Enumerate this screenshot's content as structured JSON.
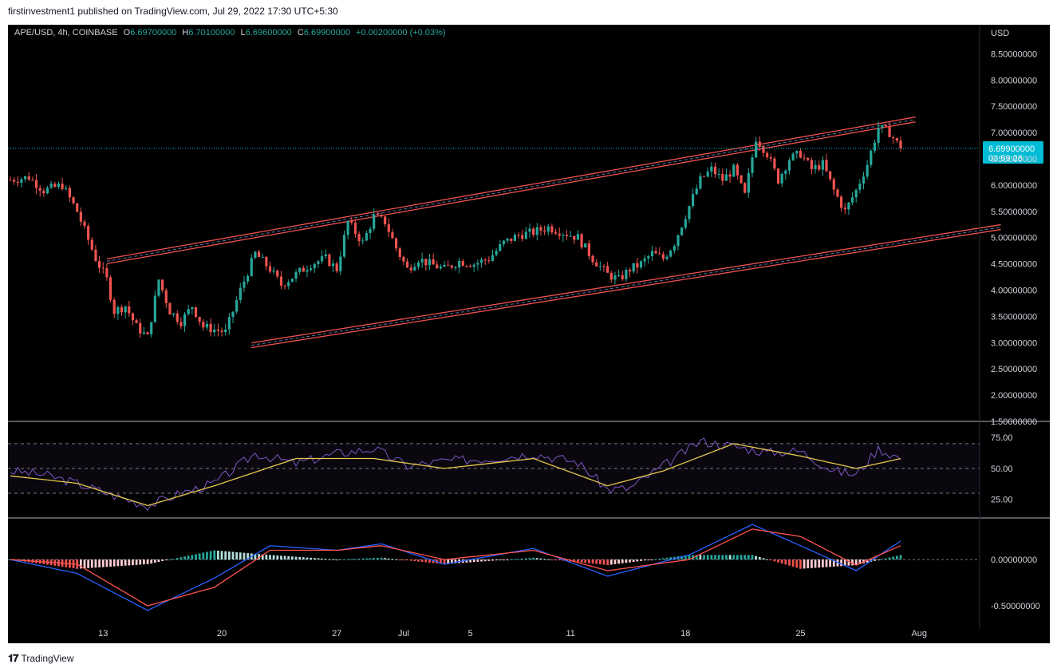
{
  "header": {
    "published_text": "firstinvestment1 published on TradingView.com, Jul 29, 2022 17:30 UTC+5:30"
  },
  "legend": {
    "symbol": "APE/USD, 4h, COINBASE",
    "o_label": "O",
    "o_value": "6.69700000",
    "h_label": "H",
    "h_value": "6.70100000",
    "l_label": "L",
    "l_value": "6.69600000",
    "c_label": "C",
    "c_value": "6.69900000",
    "change": "+0.00200000 (+0.03%)"
  },
  "price_axis": {
    "currency": "USD"
  },
  "price_tag": {
    "price": "6.69900000",
    "countdown": "03:59:26"
  },
  "footer": {
    "brand": "TradingView"
  },
  "colors": {
    "up": "#26a69a",
    "down": "#ef5350",
    "channel": "#ef5350",
    "rsi": "#7e57c2",
    "rsi_ma": "#e6c84b",
    "macd": "#2962ff",
    "signal": "#ff5252",
    "current_price": "#00bcd4"
  },
  "chart_data": [
    {
      "type": "candlestick",
      "symbol": "APE/USD",
      "timeframe": "4h",
      "exchange": "COINBASE",
      "x_ticks": [
        "13",
        "20",
        "27",
        "Jul",
        "5",
        "11",
        "18",
        "25",
        "Aug"
      ],
      "y_ticks": [
        "8.50000000",
        "8.00000000",
        "7.50000000",
        "7.00000000",
        "6.50000000",
        "6.00000000",
        "5.50000000",
        "5.00000000",
        "4.50000000",
        "4.00000000",
        "3.50000000",
        "3.00000000",
        "2.50000000",
        "2.00000000",
        "1.50000000"
      ],
      "ylim": [
        1.5,
        8.75
      ],
      "path": [
        [
          0,
          6.1
        ],
        [
          5,
          6.15
        ],
        [
          9,
          5.9
        ],
        [
          14,
          6.0
        ],
        [
          18,
          5.5
        ],
        [
          23,
          4.6
        ],
        [
          26,
          4.2
        ],
        [
          28,
          3.6
        ],
        [
          31,
          3.7
        ],
        [
          34,
          3.3
        ],
        [
          37,
          3.1
        ],
        [
          40,
          4.2
        ],
        [
          43,
          3.6
        ],
        [
          46,
          3.4
        ],
        [
          49,
          3.7
        ],
        [
          52,
          3.3
        ],
        [
          55,
          3.25
        ],
        [
          58,
          3.2
        ],
        [
          62,
          4.0
        ],
        [
          66,
          4.7
        ],
        [
          70,
          4.4
        ],
        [
          73,
          4.1
        ],
        [
          77,
          4.3
        ],
        [
          81,
          4.5
        ],
        [
          85,
          4.6
        ],
        [
          88,
          4.4
        ],
        [
          91,
          5.3
        ],
        [
          95,
          4.9
        ],
        [
          98,
          5.4
        ],
        [
          101,
          5.3
        ],
        [
          104,
          4.8
        ],
        [
          107,
          4.4
        ],
        [
          110,
          4.6
        ],
        [
          113,
          4.5
        ],
        [
          117,
          4.4
        ],
        [
          121,
          4.55
        ],
        [
          125,
          4.5
        ],
        [
          129,
          4.6
        ],
        [
          133,
          4.9
        ],
        [
          137,
          5.05
        ],
        [
          141,
          5.1
        ],
        [
          145,
          5.2
        ],
        [
          149,
          5.1
        ],
        [
          153,
          5.0
        ],
        [
          157,
          4.6
        ],
        [
          161,
          4.3
        ],
        [
          164,
          4.2
        ],
        [
          167,
          4.4
        ],
        [
          170,
          4.5
        ],
        [
          173,
          4.7
        ],
        [
          176,
          4.6
        ],
        [
          179,
          4.9
        ],
        [
          183,
          5.6
        ],
        [
          186,
          6.1
        ],
        [
          189,
          6.3
        ],
        [
          192,
          6.1
        ],
        [
          195,
          6.3
        ],
        [
          198,
          5.8
        ],
        [
          201,
          6.9
        ],
        [
          204,
          6.6
        ],
        [
          207,
          6.1
        ],
        [
          210,
          6.5
        ],
        [
          213,
          6.6
        ],
        [
          216,
          6.3
        ],
        [
          219,
          6.4
        ],
        [
          222,
          5.9
        ],
        [
          225,
          5.5
        ],
        [
          228,
          5.9
        ],
        [
          231,
          6.4
        ],
        [
          234,
          7.1
        ],
        [
          237,
          7.0
        ],
        [
          240,
          6.7
        ]
      ],
      "channel_upper": {
        "from": [
          26,
          4.55
        ],
        "to": [
          244,
          7.25
        ]
      },
      "channel_lower": {
        "from": [
          65,
          2.95
        ],
        "to": [
          267,
          5.2
        ]
      },
      "last_price": 6.699
    },
    {
      "type": "line",
      "name": "RSI",
      "y_ticks": [
        "75.00",
        "50.00",
        "25.00"
      ],
      "levels": [
        70,
        50,
        30
      ],
      "ylim": [
        10,
        88
      ],
      "series": [
        {
          "role": "rsi",
          "path": [
            [
              0,
              48
            ],
            [
              9,
              45
            ],
            [
              18,
              38
            ],
            [
              28,
              28
            ],
            [
              37,
              20
            ],
            [
              46,
              30
            ],
            [
              55,
              38
            ],
            [
              66,
              62
            ],
            [
              77,
              54
            ],
            [
              88,
              62
            ],
            [
              98,
              66
            ],
            [
              107,
              52
            ],
            [
              117,
              56
            ],
            [
              129,
              58
            ],
            [
              141,
              62
            ],
            [
              153,
              55
            ],
            [
              161,
              33
            ],
            [
              167,
              34
            ],
            [
              176,
              52
            ],
            [
              186,
              72
            ],
            [
              195,
              68
            ],
            [
              204,
              63
            ],
            [
              213,
              64
            ],
            [
              222,
              48
            ],
            [
              228,
              45
            ],
            [
              234,
              66
            ],
            [
              240,
              58
            ]
          ]
        },
        {
          "role": "rsi_ma",
          "path": [
            [
              0,
              44
            ],
            [
              18,
              38
            ],
            [
              37,
              20
            ],
            [
              55,
              36
            ],
            [
              77,
              58
            ],
            [
              98,
              58
            ],
            [
              117,
              50
            ],
            [
              141,
              58
            ],
            [
              161,
              36
            ],
            [
              176,
              48
            ],
            [
              195,
              70
            ],
            [
              213,
              60
            ],
            [
              228,
              50
            ],
            [
              240,
              58
            ]
          ]
        }
      ]
    },
    {
      "type": "line+histogram",
      "name": "MACD",
      "y_ticks": [
        "0.00000000",
        "-0.50000000"
      ],
      "ylim": [
        -0.75,
        0.45
      ],
      "series": [
        {
          "role": "macd",
          "path": [
            [
              0,
              0.0
            ],
            [
              18,
              -0.15
            ],
            [
              37,
              -0.55
            ],
            [
              55,
              -0.2
            ],
            [
              70,
              0.15
            ],
            [
              88,
              0.1
            ],
            [
              100,
              0.17
            ],
            [
              117,
              -0.05
            ],
            [
              141,
              0.12
            ],
            [
              161,
              -0.18
            ],
            [
              183,
              0.05
            ],
            [
              200,
              0.38
            ],
            [
              213,
              0.15
            ],
            [
              228,
              -0.12
            ],
            [
              240,
              0.2
            ]
          ]
        },
        {
          "role": "signal",
          "path": [
            [
              0,
              0.0
            ],
            [
              18,
              -0.05
            ],
            [
              37,
              -0.5
            ],
            [
              55,
              -0.3
            ],
            [
              70,
              0.1
            ],
            [
              88,
              0.1
            ],
            [
              100,
              0.15
            ],
            [
              117,
              0.0
            ],
            [
              141,
              0.1
            ],
            [
              161,
              -0.12
            ],
            [
              183,
              0.0
            ],
            [
              200,
              0.33
            ],
            [
              213,
              0.25
            ],
            [
              228,
              -0.06
            ],
            [
              240,
              0.15
            ]
          ]
        }
      ]
    }
  ]
}
